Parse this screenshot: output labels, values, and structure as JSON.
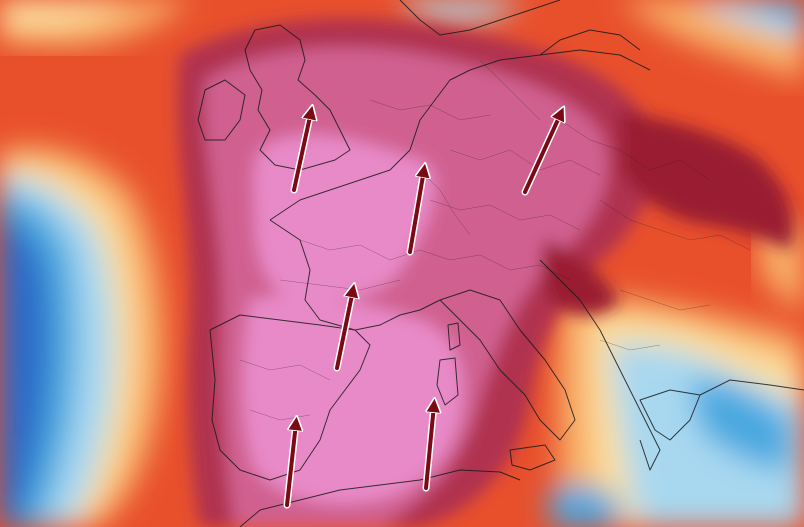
{
  "map": {
    "type": "temperature-anomaly",
    "region": "Europe",
    "colors": {
      "extreme_pink": "#e88ac8",
      "magenta": "#d06090",
      "crimson": "#b03050",
      "deep_red": "#9a1b30",
      "red": "#d8402a",
      "orange": "#f07a38",
      "light_orange": "#f8b068",
      "cream": "#fce0a0",
      "pale": "#f4f0e8",
      "light_blue": "#a8d8f0",
      "cyan": "#4aa8e0",
      "blue": "#2a6ac8",
      "arrow": "#7a0a14",
      "borders": "#1a1a1a"
    },
    "arrows": [
      {
        "name": "arrow-britain"
      },
      {
        "name": "arrow-netherlands"
      },
      {
        "name": "arrow-poland"
      },
      {
        "name": "arrow-eastern-france"
      },
      {
        "name": "arrow-southern-france"
      },
      {
        "name": "arrow-southwest-spain"
      },
      {
        "name": "arrow-western-mediterranean"
      }
    ]
  }
}
